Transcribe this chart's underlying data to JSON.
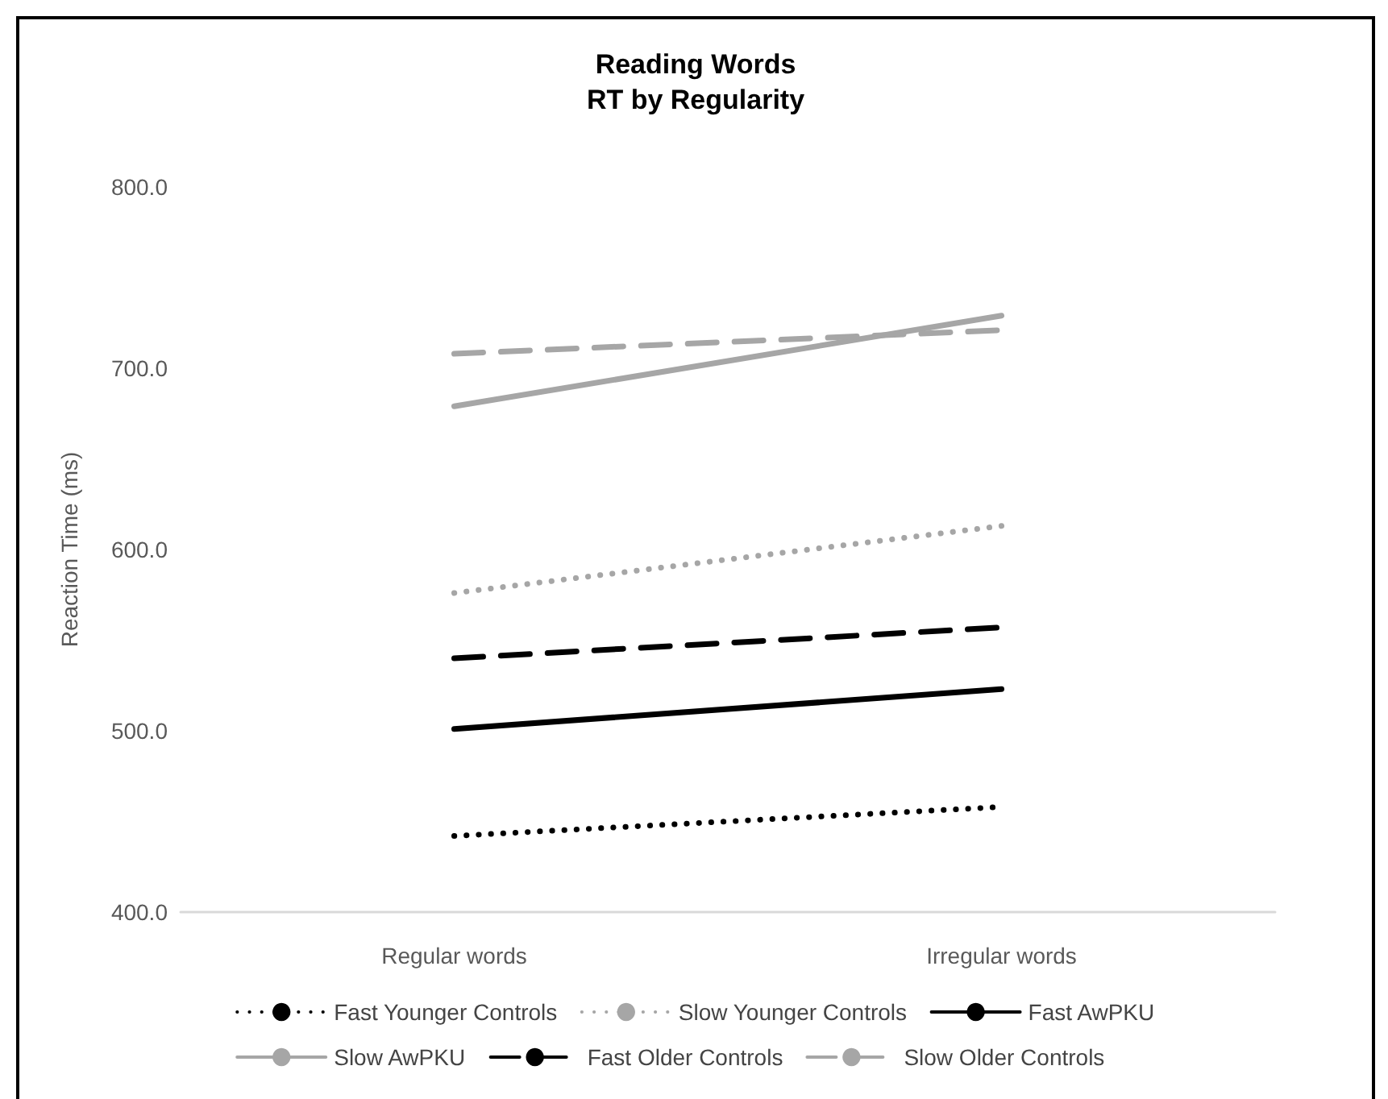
{
  "chart_data": {
    "type": "line",
    "title": "Reading Words\nRT by Regularity",
    "ylabel": "Reaction Time (ms)",
    "categories": [
      "Regular words",
      "Irregular words"
    ],
    "series": [
      {
        "name": "Fast Younger Controls",
        "color": "#000000",
        "line_style": "dotted",
        "values": [
          442,
          458
        ]
      },
      {
        "name": "Slow Younger Controls",
        "color": "#a6a6a6",
        "line_style": "dotted",
        "values": [
          576,
          613
        ]
      },
      {
        "name": "Fast AwPKU",
        "color": "#000000",
        "line_style": "solid",
        "values": [
          501,
          523
        ]
      },
      {
        "name": "Slow AwPKU",
        "color": "#a6a6a6",
        "line_style": "solid",
        "values": [
          679,
          729
        ]
      },
      {
        "name": "Fast Older Controls",
        "color": "#000000",
        "line_style": "dashed",
        "values": [
          540,
          557
        ]
      },
      {
        "name": "Slow Older Controls",
        "color": "#a6a6a6",
        "line_style": "dashed",
        "values": [
          708,
          721
        ]
      }
    ],
    "ylim": [
      400,
      800
    ],
    "yticks": [
      {
        "value": 400,
        "label": "400.0"
      },
      {
        "value": 500,
        "label": "500.0"
      },
      {
        "value": 600,
        "label": "600.0"
      },
      {
        "value": 700,
        "label": "700.0"
      },
      {
        "value": 800,
        "label": "800.0"
      }
    ],
    "grid": false,
    "legend": "bottom",
    "marker": "none"
  }
}
